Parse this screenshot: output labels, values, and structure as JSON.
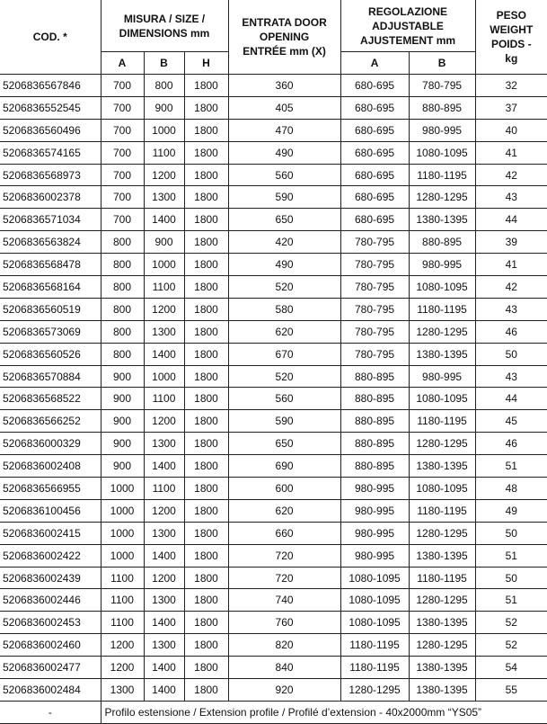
{
  "header": {
    "code": "COD. *",
    "size": "MISURA / SIZE / DIMENSIONS mm",
    "entry": "ENTRATA DOOR OPENING ENTRÉE mm (X)",
    "adjust": "REGOLAZIONE ADJUSTABLE AJUSTEMENT mm",
    "weight": "PESO WEIGHT POIDS - kg",
    "size_sub": [
      "A",
      "B",
      "H"
    ],
    "adjust_sub": [
      "A",
      "B"
    ]
  },
  "rows": [
    [
      "5206836567846",
      "700",
      "800",
      "1800",
      "360",
      "680-695",
      "780-795",
      "32"
    ],
    [
      "5206836552545",
      "700",
      "900",
      "1800",
      "405",
      "680-695",
      "880-895",
      "37"
    ],
    [
      "5206836560496",
      "700",
      "1000",
      "1800",
      "470",
      "680-695",
      "980-995",
      "40"
    ],
    [
      "5206836574165",
      "700",
      "1100",
      "1800",
      "490",
      "680-695",
      "1080-1095",
      "41"
    ],
    [
      "5206836568973",
      "700",
      "1200",
      "1800",
      "560",
      "680-695",
      "1180-1195",
      "42"
    ],
    [
      "5206836002378",
      "700",
      "1300",
      "1800",
      "590",
      "680-695",
      "1280-1295",
      "43"
    ],
    [
      "5206836571034",
      "700",
      "1400",
      "1800",
      "650",
      "680-695",
      "1380-1395",
      "44"
    ],
    [
      "5206836563824",
      "800",
      "900",
      "1800",
      "420",
      "780-795",
      "880-895",
      "39"
    ],
    [
      "5206836568478",
      "800",
      "1000",
      "1800",
      "490",
      "780-795",
      "980-995",
      "41"
    ],
    [
      "5206836568164",
      "800",
      "1100",
      "1800",
      "520",
      "780-795",
      "1080-1095",
      "42"
    ],
    [
      "5206836560519",
      "800",
      "1200",
      "1800",
      "580",
      "780-795",
      "1180-1195",
      "43"
    ],
    [
      "5206836573069",
      "800",
      "1300",
      "1800",
      "620",
      "780-795",
      "1280-1295",
      "46"
    ],
    [
      "5206836560526",
      "800",
      "1400",
      "1800",
      "670",
      "780-795",
      "1380-1395",
      "50"
    ],
    [
      "5206836570884",
      "900",
      "1000",
      "1800",
      "520",
      "880-895",
      "980-995",
      "43"
    ],
    [
      "5206836568522",
      "900",
      "1100",
      "1800",
      "560",
      "880-895",
      "1080-1095",
      "44"
    ],
    [
      "5206836566252",
      "900",
      "1200",
      "1800",
      "590",
      "880-895",
      "1180-1195",
      "45"
    ],
    [
      "5206836000329",
      "900",
      "1300",
      "1800",
      "650",
      "880-895",
      "1280-1295",
      "46"
    ],
    [
      "5206836002408",
      "900",
      "1400",
      "1800",
      "690",
      "880-895",
      "1380-1395",
      "51"
    ],
    [
      "5206836566955",
      "1000",
      "1100",
      "1800",
      "600",
      "980-995",
      "1080-1095",
      "48"
    ],
    [
      "5206836100456",
      "1000",
      "1200",
      "1800",
      "620",
      "980-995",
      "1180-1195",
      "49"
    ],
    [
      "5206836002415",
      "1000",
      "1300",
      "1800",
      "660",
      "980-995",
      "1280-1295",
      "50"
    ],
    [
      "5206836002422",
      "1000",
      "1400",
      "1800",
      "720",
      "980-995",
      "1380-1395",
      "51"
    ],
    [
      "5206836002439",
      "1100",
      "1200",
      "1800",
      "720",
      "1080-1095",
      "1180-1195",
      "50"
    ],
    [
      "5206836002446",
      "1100",
      "1300",
      "1800",
      "740",
      "1080-1095",
      "1280-1295",
      "51"
    ],
    [
      "5206836002453",
      "1100",
      "1400",
      "1800",
      "760",
      "1080-1095",
      "1380-1395",
      "52"
    ],
    [
      "5206836002460",
      "1200",
      "1300",
      "1800",
      "820",
      "1180-1195",
      "1280-1295",
      "52"
    ],
    [
      "5206836002477",
      "1200",
      "1400",
      "1800",
      "840",
      "1180-1195",
      "1380-1395",
      "54"
    ],
    [
      "5206836002484",
      "1300",
      "1400",
      "1800",
      "920",
      "1280-1295",
      "1380-1395",
      "55"
    ]
  ],
  "footer": {
    "code": "-",
    "note": "Profilo estensione / Extension profile / Profilé d’extension - 40x2000mm “YS05”"
  }
}
